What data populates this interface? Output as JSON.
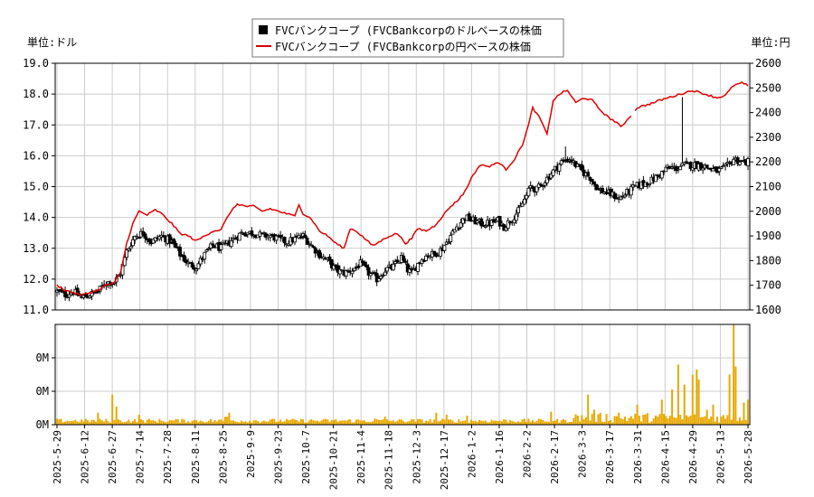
{
  "chart_data": {
    "type": "candlestick+line+bar",
    "legend": {
      "placement": "top-center",
      "items": [
        {
          "key": "usd",
          "label": "FVCバンクコープ (FVCBankcorpのドルベースの株価",
          "color": "#000000",
          "marker": "square"
        },
        {
          "key": "jpy",
          "label": "FVCバンクコープ (FVCBankcorpの円ベースの株価",
          "color": "#dd0000",
          "marker": "line"
        }
      ]
    },
    "left_axis": {
      "unit_label": "単位:ドル",
      "ylim": [
        11.0,
        19.0
      ],
      "ticks": [
        "11.0",
        "12.0",
        "13.0",
        "14.0",
        "15.0",
        "16.0",
        "17.0",
        "18.0",
        "19.0"
      ]
    },
    "right_axis": {
      "unit_label": "単位:円",
      "ylim": [
        1600,
        2600
      ],
      "ticks": [
        "1600",
        "1700",
        "1800",
        "1900",
        "2000",
        "2100",
        "2200",
        "2300",
        "2400",
        "2500",
        "2600"
      ]
    },
    "volume_axis": {
      "ylim": [
        0,
        1
      ],
      "ticks": [
        "0M",
        "0M",
        "0M"
      ]
    },
    "grid": true,
    "x_ticks": [
      "2025-5-29",
      "2025-6-12",
      "2025-6-27",
      "2025-7-14",
      "2025-7-28",
      "2025-8-11",
      "2025-8-25",
      "2025-9-9",
      "2025-9-23",
      "2025-10-7",
      "2025-10-21",
      "2025-11-4",
      "2025-11-18",
      "2025-12-3",
      "2025-12-17",
      "2026-1-2",
      "2026-1-16",
      "2026-2-2",
      "2026-2-17",
      "2026-3-3",
      "2026-3-17",
      "2026-3-31",
      "2026-4-15",
      "2026-4-29",
      "2026-5-13",
      "2026-5-28"
    ],
    "colors": {
      "usd": "#000000",
      "jpy": "#dd0000",
      "volume": "#e8a800",
      "grid": "#cccccc"
    },
    "price_usd_anchors": [
      [
        0,
        11.6
      ],
      [
        4,
        11.5
      ],
      [
        8,
        11.6
      ],
      [
        12,
        11.4
      ],
      [
        16,
        11.5
      ],
      [
        20,
        11.6
      ],
      [
        24,
        11.9
      ],
      [
        28,
        11.9
      ],
      [
        31,
        12.2
      ],
      [
        34,
        12.9
      ],
      [
        38,
        13.4
      ],
      [
        42,
        13.5
      ],
      [
        46,
        13.2
      ],
      [
        51,
        13.4
      ],
      [
        56,
        13.2
      ],
      [
        60,
        12.8
      ],
      [
        64,
        12.5
      ],
      [
        68,
        12.4
      ],
      [
        72,
        12.8
      ],
      [
        76,
        13.1
      ],
      [
        80,
        13.0
      ],
      [
        86,
        13.3
      ],
      [
        90,
        13.5
      ],
      [
        96,
        13.5
      ],
      [
        100,
        13.4
      ],
      [
        104,
        13.4
      ],
      [
        108,
        13.3
      ],
      [
        112,
        13.2
      ],
      [
        116,
        13.3
      ],
      [
        120,
        13.4
      ],
      [
        124,
        13.1
      ],
      [
        128,
        12.8
      ],
      [
        132,
        12.6
      ],
      [
        136,
        12.3
      ],
      [
        140,
        12.2
      ],
      [
        144,
        12.3
      ],
      [
        148,
        12.5
      ],
      [
        152,
        12.2
      ],
      [
        156,
        12.0
      ],
      [
        160,
        12.3
      ],
      [
        164,
        12.4
      ],
      [
        168,
        12.7
      ],
      [
        171,
        12.3
      ],
      [
        173,
        12.2
      ],
      [
        177,
        12.6
      ],
      [
        181,
        12.8
      ],
      [
        184,
        12.8
      ],
      [
        188,
        13.0
      ],
      [
        191,
        13.3
      ],
      [
        195,
        13.7
      ],
      [
        199,
        14.0
      ],
      [
        203,
        13.9
      ],
      [
        207,
        13.8
      ],
      [
        211,
        13.8
      ],
      [
        215,
        13.9
      ],
      [
        218,
        13.7
      ],
      [
        221,
        13.9
      ],
      [
        225,
        14.2
      ],
      [
        229,
        14.7
      ],
      [
        231,
        15.0
      ],
      [
        234,
        14.9
      ],
      [
        238,
        15.2
      ],
      [
        242,
        15.5
      ],
      [
        246,
        15.8
      ],
      [
        250,
        15.9
      ],
      [
        253,
        15.7
      ],
      [
        256,
        15.5
      ],
      [
        260,
        15.3
      ],
      [
        264,
        14.9
      ],
      [
        268,
        14.8
      ],
      [
        272,
        14.7
      ],
      [
        274,
        14.6
      ],
      [
        278,
        14.8
      ],
      [
        282,
        15.0
      ],
      [
        286,
        15.1
      ],
      [
        290,
        15.2
      ],
      [
        294,
        15.4
      ],
      [
        298,
        15.6
      ],
      [
        302,
        15.6
      ],
      [
        306,
        15.7
      ],
      [
        310,
        15.7
      ],
      [
        314,
        15.7
      ],
      [
        318,
        15.6
      ],
      [
        322,
        15.5
      ],
      [
        326,
        15.6
      ],
      [
        330,
        15.9
      ],
      [
        334,
        15.8
      ],
      [
        337,
        15.8
      ]
    ],
    "price_jpy_anchors": [
      [
        0,
        1700
      ],
      [
        4,
        1680
      ],
      [
        8,
        1670
      ],
      [
        12,
        1660
      ],
      [
        16,
        1670
      ],
      [
        20,
        1680
      ],
      [
        24,
        1700
      ],
      [
        28,
        1710
      ],
      [
        31,
        1750
      ],
      [
        34,
        1870
      ],
      [
        37,
        1950
      ],
      [
        40,
        2000
      ],
      [
        44,
        1985
      ],
      [
        48,
        2005
      ],
      [
        51,
        1990
      ],
      [
        56,
        1950
      ],
      [
        60,
        1910
      ],
      [
        64,
        1900
      ],
      [
        68,
        1880
      ],
      [
        72,
        1900
      ],
      [
        76,
        1920
      ],
      [
        80,
        1925
      ],
      [
        84,
        1990
      ],
      [
        88,
        2030
      ],
      [
        92,
        2020
      ],
      [
        96,
        2020
      ],
      [
        100,
        2000
      ],
      [
        104,
        2010
      ],
      [
        108,
        2000
      ],
      [
        112,
        1990
      ],
      [
        116,
        1980
      ],
      [
        118,
        2030
      ],
      [
        120,
        1990
      ],
      [
        124,
        1970
      ],
      [
        128,
        1920
      ],
      [
        132,
        1900
      ],
      [
        136,
        1870
      ],
      [
        140,
        1850
      ],
      [
        143,
        1930
      ],
      [
        146,
        1920
      ],
      [
        150,
        1890
      ],
      [
        154,
        1860
      ],
      [
        158,
        1880
      ],
      [
        162,
        1900
      ],
      [
        166,
        1910
      ],
      [
        170,
        1870
      ],
      [
        173,
        1890
      ],
      [
        176,
        1930
      ],
      [
        180,
        1920
      ],
      [
        184,
        1940
      ],
      [
        188,
        1980
      ],
      [
        192,
        2020
      ],
      [
        195,
        2040
      ],
      [
        199,
        2080
      ],
      [
        203,
        2150
      ],
      [
        207,
        2190
      ],
      [
        211,
        2180
      ],
      [
        215,
        2200
      ],
      [
        219,
        2170
      ],
      [
        223,
        2210
      ],
      [
        227,
        2270
      ],
      [
        230,
        2350
      ],
      [
        232,
        2420
      ],
      [
        236,
        2370
      ],
      [
        239,
        2310
      ],
      [
        242,
        2450
      ],
      [
        246,
        2480
      ],
      [
        249,
        2490
      ],
      [
        253,
        2440
      ],
      [
        257,
        2460
      ],
      [
        261,
        2450
      ],
      [
        265,
        2410
      ],
      [
        269,
        2380
      ],
      [
        273,
        2360
      ],
      [
        275,
        2340
      ],
      [
        279,
        2380
      ],
      [
        283,
        2420
      ],
      [
        287,
        2430
      ],
      [
        291,
        2440
      ],
      [
        294,
        2450
      ],
      [
        298,
        2460
      ],
      [
        302,
        2470
      ],
      [
        306,
        2480
      ],
      [
        310,
        2490
      ],
      [
        314,
        2480
      ],
      [
        318,
        2470
      ],
      [
        322,
        2460
      ],
      [
        326,
        2470
      ],
      [
        330,
        2510
      ],
      [
        334,
        2520
      ],
      [
        337,
        2510
      ]
    ],
    "volume_spikes": [
      [
        20,
        0.12
      ],
      [
        27,
        0.3
      ],
      [
        29,
        0.18
      ],
      [
        40,
        0.1
      ],
      [
        82,
        0.08
      ],
      [
        83,
        0.08
      ],
      [
        83,
        0.06
      ],
      [
        84,
        0.12
      ],
      [
        155,
        0.06
      ],
      [
        160,
        0.08
      ],
      [
        185,
        0.12
      ],
      [
        190,
        0.1
      ],
      [
        200,
        0.09
      ],
      [
        241,
        0.13
      ],
      [
        259,
        0.3
      ],
      [
        262,
        0.15
      ],
      [
        274,
        0.12
      ],
      [
        283,
        0.2
      ],
      [
        295,
        0.25
      ],
      [
        300,
        0.35
      ],
      [
        303,
        0.6
      ],
      [
        306,
        0.4
      ],
      [
        317,
        0.15
      ],
      [
        320,
        0.2
      ],
      [
        335,
        0.22
      ],
      [
        337,
        0.25
      ]
    ],
    "volume_note": "daily volume bars, values below axis resolution"
  }
}
